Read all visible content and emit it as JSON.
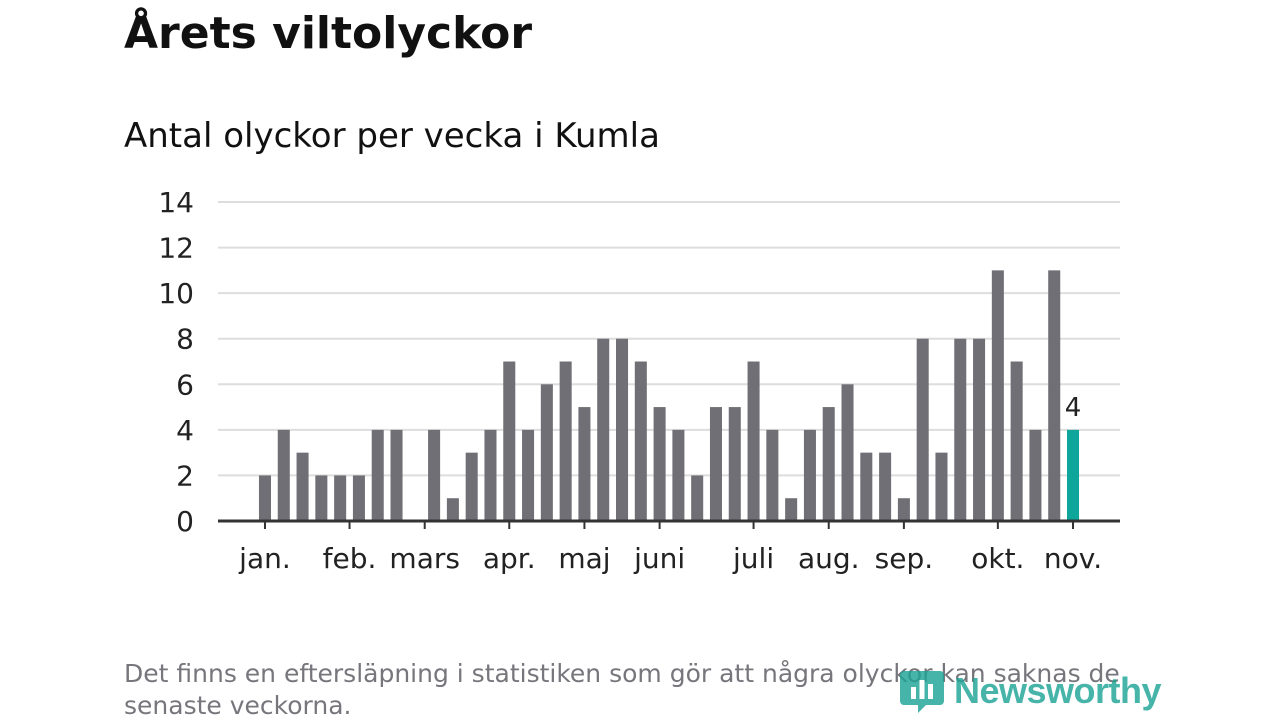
{
  "title": "Årets viltolyckor",
  "subtitle": "Antal olyckor per vecka i Kumla",
  "note": "Det finns en eftersläpning i statistiken som gör att några olyckor kan saknas de senaste veckorna.",
  "logo": {
    "text": "Newsworthy",
    "icon": "newsworthy-bar-chart-icon"
  },
  "colors": {
    "bar": "#706f75",
    "highlight": "#0ea59a",
    "grid": "#dddddd",
    "axis": "#333333",
    "text": "#222222"
  },
  "chart_data": {
    "type": "bar",
    "title": "Antal olyckor per vecka i Kumla",
    "xlabel": "",
    "ylabel": "",
    "ylim": [
      0,
      14
    ],
    "yticks": [
      0,
      2,
      4,
      6,
      8,
      10,
      12,
      14
    ],
    "grid": true,
    "legend": "none",
    "week_slots": 48,
    "values": [
      0,
      0,
      2,
      4,
      3,
      2,
      2,
      2,
      4,
      4,
      0,
      4,
      1,
      3,
      4,
      7,
      4,
      6,
      7,
      5,
      8,
      8,
      7,
      5,
      4,
      2,
      5,
      5,
      7,
      4,
      1,
      4,
      5,
      6,
      3,
      3,
      1,
      8,
      3,
      8,
      8,
      11,
      7,
      4,
      11,
      4
    ],
    "highlight_index": 45,
    "highlight_label": "4",
    "month_labels": [
      {
        "label": "jan.",
        "week": 2.5
      },
      {
        "label": "feb.",
        "week": 7
      },
      {
        "label": "mars",
        "week": 11
      },
      {
        "label": "apr.",
        "week": 15.5
      },
      {
        "label": "maj",
        "week": 19.5
      },
      {
        "label": "juni",
        "week": 23.5
      },
      {
        "label": "juli",
        "week": 28.5
      },
      {
        "label": "aug.",
        "week": 32.5
      },
      {
        "label": "sep.",
        "week": 36.5
      },
      {
        "label": "okt.",
        "week": 41.5
      },
      {
        "label": "nov.",
        "week": 45.5
      }
    ]
  }
}
